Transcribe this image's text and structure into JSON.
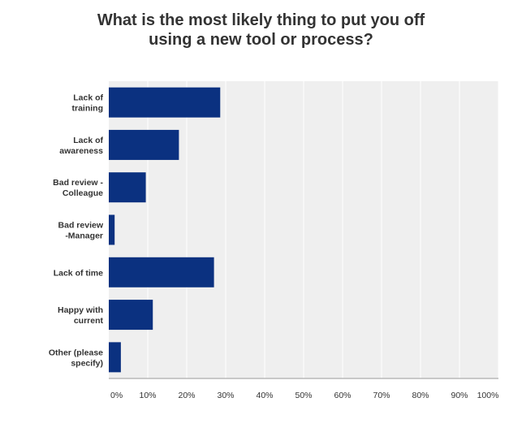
{
  "title_lines": [
    "What is the most likely thing to put you off",
    "using a new tool or process?"
  ],
  "chart_data": {
    "type": "bar",
    "orientation": "horizontal",
    "title": "What is the most likely thing to put you off using a new tool or process?",
    "categories": [
      [
        "Lack of",
        "training"
      ],
      [
        "Lack of",
        "awareness"
      ],
      [
        "Bad review -",
        "Colleague"
      ],
      [
        "Bad review",
        "-Manager"
      ],
      [
        "Lack of time"
      ],
      [
        "Happy with",
        "current"
      ],
      [
        "Other (please",
        "specify)"
      ]
    ],
    "values": [
      28.6,
      18.0,
      9.5,
      1.5,
      27.0,
      11.3,
      3.1
    ],
    "x_ticks": [
      "0%",
      "10%",
      "20%",
      "30%",
      "40%",
      "50%",
      "60%",
      "70%",
      "80%",
      "90%",
      "100%"
    ],
    "xlim": [
      0,
      100
    ],
    "grid": true,
    "colors": {
      "bar": "#0b3180",
      "plot_bg": "#efefef",
      "grid": "#ffffff"
    }
  }
}
